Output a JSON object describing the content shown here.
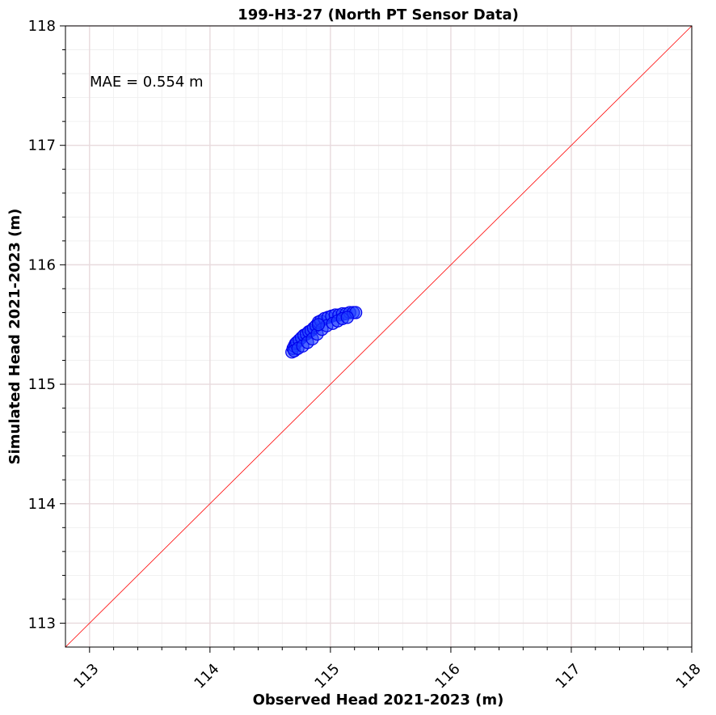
{
  "chart_data": {
    "type": "scatter",
    "title": "199-H3-27 (North PT Sensor Data)",
    "xlabel": "Observed Head 2021-2023 (m)",
    "ylabel": "Simulated Head 2021-2023 (m)",
    "xlim": [
      112.8,
      118
    ],
    "ylim": [
      112.8,
      118
    ],
    "xticks": [
      "113",
      "114",
      "115",
      "116",
      "117",
      "118"
    ],
    "yticks": [
      "113",
      "114",
      "115",
      "116",
      "117",
      "118"
    ],
    "grid": true,
    "annotation": "MAE = 0.554 m",
    "reference_line": {
      "from": [
        112.8,
        112.8
      ],
      "to": [
        118,
        118
      ],
      "color": "#ff0000"
    },
    "marker_color": "#1f3fff",
    "marker_edge_color": "#0000ee",
    "series": [
      {
        "x": [
          114.68,
          114.69,
          114.7,
          114.71,
          114.72,
          114.74,
          114.76,
          114.78,
          114.8,
          114.82,
          114.84,
          114.86,
          114.88,
          114.9,
          114.92,
          114.95,
          114.98,
          115.01,
          115.04,
          115.07,
          115.1,
          115.13,
          115.16,
          115.19,
          115.21,
          114.7,
          114.73,
          114.77,
          114.81,
          114.85,
          114.89,
          114.93,
          114.97,
          115.02,
          115.06,
          115.1,
          115.14,
          114.9
        ],
        "y": [
          115.27,
          115.3,
          115.32,
          115.34,
          115.35,
          115.37,
          115.39,
          115.41,
          115.42,
          115.44,
          115.45,
          115.47,
          115.49,
          115.52,
          115.53,
          115.55,
          115.56,
          115.57,
          115.58,
          115.58,
          115.59,
          115.59,
          115.6,
          115.6,
          115.6,
          115.28,
          115.3,
          115.32,
          115.35,
          115.38,
          115.42,
          115.46,
          115.49,
          115.51,
          115.53,
          115.55,
          115.56,
          115.5
        ]
      }
    ]
  }
}
